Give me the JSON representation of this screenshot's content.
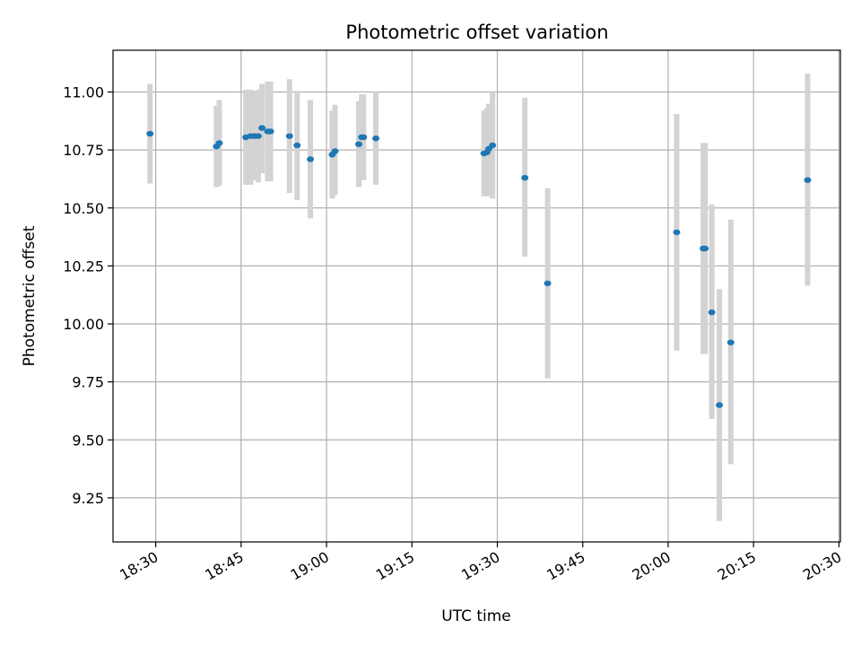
{
  "chart_data": {
    "type": "scatter",
    "title": "Photometric offset variation",
    "xlabel": "UTC time",
    "ylabel": "Photometric offset",
    "x_ticks": [
      "18:30",
      "18:45",
      "19:00",
      "19:15",
      "19:30",
      "19:45",
      "20:00",
      "20:15",
      "20:30"
    ],
    "y_ticks": [
      "9.25",
      "9.50",
      "9.75",
      "10.00",
      "10.25",
      "10.50",
      "10.75",
      "11.00"
    ],
    "xlim": [
      "18:22:30",
      "20:30:15"
    ],
    "ylim": [
      9.06,
      11.18
    ],
    "grid": true,
    "marker_color": "#1f77b4",
    "errorbar_color": "#d3d3d3",
    "points": [
      {
        "t": "18:29:00",
        "y": 10.82,
        "lo": 10.605,
        "hi": 11.035
      },
      {
        "t": "18:40:40",
        "y": 10.765,
        "lo": 10.59,
        "hi": 10.94
      },
      {
        "t": "18:41:10",
        "y": 10.78,
        "lo": 10.595,
        "hi": 10.965
      },
      {
        "t": "18:45:50",
        "y": 10.805,
        "lo": 10.6,
        "hi": 11.01
      },
      {
        "t": "18:46:40",
        "y": 10.81,
        "lo": 10.6,
        "hi": 11.01
      },
      {
        "t": "18:47:20",
        "y": 10.81,
        "lo": 10.62,
        "hi": 11.0
      },
      {
        "t": "18:48:00",
        "y": 10.81,
        "lo": 10.61,
        "hi": 11.01
      },
      {
        "t": "18:48:40",
        "y": 10.845,
        "lo": 10.65,
        "hi": 11.035
      },
      {
        "t": "18:49:40",
        "y": 10.83,
        "lo": 10.615,
        "hi": 11.045
      },
      {
        "t": "18:50:10",
        "y": 10.83,
        "lo": 10.615,
        "hi": 11.045
      },
      {
        "t": "18:53:30",
        "y": 10.81,
        "lo": 10.565,
        "hi": 11.055
      },
      {
        "t": "18:54:50",
        "y": 10.77,
        "lo": 10.535,
        "hi": 11.005
      },
      {
        "t": "18:57:10",
        "y": 10.71,
        "lo": 10.455,
        "hi": 10.965
      },
      {
        "t": "19:01:00",
        "y": 10.73,
        "lo": 10.54,
        "hi": 10.92
      },
      {
        "t": "19:01:30",
        "y": 10.745,
        "lo": 10.555,
        "hi": 10.945
      },
      {
        "t": "19:05:40",
        "y": 10.775,
        "lo": 10.59,
        "hi": 10.96
      },
      {
        "t": "19:06:10",
        "y": 10.805,
        "lo": 10.62,
        "hi": 10.99
      },
      {
        "t": "19:06:30",
        "y": 10.805,
        "lo": 10.62,
        "hi": 10.99
      },
      {
        "t": "19:08:40",
        "y": 10.8,
        "lo": 10.6,
        "hi": 11.0
      },
      {
        "t": "19:27:40",
        "y": 10.735,
        "lo": 10.55,
        "hi": 10.92
      },
      {
        "t": "19:28:10",
        "y": 10.74,
        "lo": 10.55,
        "hi": 10.93
      },
      {
        "t": "19:28:30",
        "y": 10.755,
        "lo": 10.555,
        "hi": 10.95
      },
      {
        "t": "19:29:10",
        "y": 10.77,
        "lo": 10.54,
        "hi": 11.0
      },
      {
        "t": "19:34:50",
        "y": 10.63,
        "lo": 10.29,
        "hi": 10.975
      },
      {
        "t": "19:38:50",
        "y": 10.175,
        "lo": 9.765,
        "hi": 10.585
      },
      {
        "t": "20:01:30",
        "y": 10.395,
        "lo": 9.885,
        "hi": 10.905
      },
      {
        "t": "20:06:10",
        "y": 10.325,
        "lo": 9.87,
        "hi": 10.78
      },
      {
        "t": "20:06:30",
        "y": 10.325,
        "lo": 9.87,
        "hi": 10.78
      },
      {
        "t": "20:07:40",
        "y": 10.05,
        "lo": 9.59,
        "hi": 10.515
      },
      {
        "t": "20:09:00",
        "y": 9.65,
        "lo": 9.15,
        "hi": 10.15
      },
      {
        "t": "20:11:00",
        "y": 9.92,
        "lo": 9.395,
        "hi": 10.45
      },
      {
        "t": "20:24:30",
        "y": 10.62,
        "lo": 10.165,
        "hi": 11.08
      }
    ]
  }
}
